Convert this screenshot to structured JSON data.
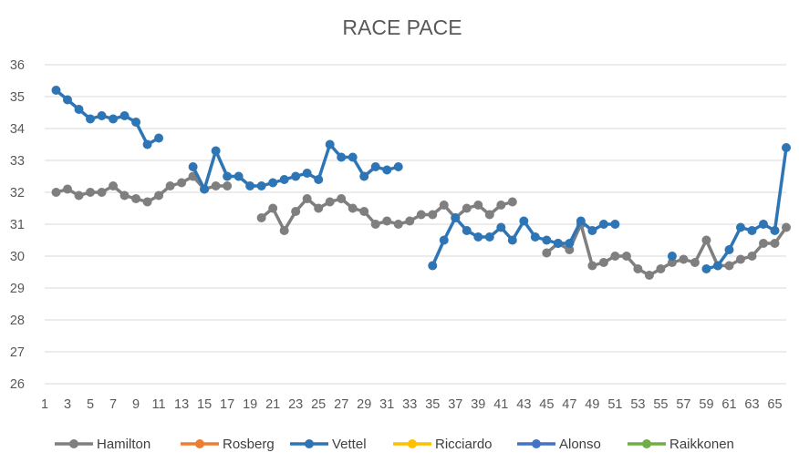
{
  "chart_data": {
    "type": "line",
    "title": "RACE PACE",
    "xlabel": "",
    "ylabel": "",
    "ylim": [
      26,
      36
    ],
    "xlim": [
      1,
      66
    ],
    "yticks": [
      26,
      27,
      28,
      29,
      30,
      31,
      32,
      33,
      34,
      35,
      36
    ],
    "xticks": [
      1,
      3,
      5,
      7,
      9,
      11,
      13,
      15,
      17,
      19,
      21,
      23,
      25,
      27,
      29,
      31,
      33,
      35,
      37,
      39,
      41,
      43,
      45,
      47,
      49,
      51,
      53,
      55,
      57,
      59,
      61,
      63,
      65
    ],
    "grid": "horizontal",
    "legend_position": "bottom",
    "series": [
      {
        "name": "Hamilton",
        "color": "#7f7f7f",
        "points": [
          [
            2,
            32.0
          ],
          [
            3,
            32.1
          ],
          [
            4,
            31.9
          ],
          [
            5,
            32.0
          ],
          [
            6,
            32.0
          ],
          [
            7,
            32.2
          ],
          [
            8,
            31.9
          ],
          [
            9,
            31.8
          ],
          [
            10,
            31.7
          ],
          [
            11,
            31.9
          ],
          [
            12,
            32.2
          ],
          [
            13,
            32.3
          ],
          [
            14,
            32.5
          ],
          [
            15,
            32.1
          ],
          [
            16,
            32.2
          ],
          [
            17,
            32.2
          ],
          [
            20,
            31.2
          ],
          [
            21,
            31.5
          ],
          [
            22,
            30.8
          ],
          [
            23,
            31.4
          ],
          [
            24,
            31.8
          ],
          [
            25,
            31.5
          ],
          [
            26,
            31.7
          ],
          [
            27,
            31.8
          ],
          [
            28,
            31.5
          ],
          [
            29,
            31.4
          ],
          [
            30,
            31.0
          ],
          [
            31,
            31.1
          ],
          [
            32,
            31.0
          ],
          [
            33,
            31.1
          ],
          [
            34,
            31.3
          ],
          [
            35,
            31.3
          ],
          [
            36,
            31.6
          ],
          [
            37,
            31.2
          ],
          [
            38,
            31.5
          ],
          [
            39,
            31.6
          ],
          [
            40,
            31.3
          ],
          [
            41,
            31.6
          ],
          [
            42,
            31.7
          ],
          [
            45,
            30.1
          ],
          [
            46,
            30.4
          ],
          [
            47,
            30.2
          ],
          [
            48,
            31.0
          ],
          [
            49,
            29.7
          ],
          [
            50,
            29.8
          ],
          [
            51,
            30.0
          ],
          [
            52,
            30.0
          ],
          [
            53,
            29.6
          ],
          [
            54,
            29.4
          ],
          [
            55,
            29.6
          ],
          [
            56,
            29.8
          ],
          [
            57,
            29.9
          ],
          [
            58,
            29.8
          ],
          [
            59,
            30.5
          ],
          [
            60,
            29.7
          ],
          [
            61,
            29.7
          ],
          [
            62,
            29.9
          ],
          [
            63,
            30.0
          ],
          [
            64,
            30.4
          ],
          [
            65,
            30.4
          ],
          [
            66,
            30.9
          ]
        ]
      },
      {
        "name": "Rosberg",
        "color": "#ed7d31",
        "points": []
      },
      {
        "name": "Vettel",
        "color": "#2e75b6",
        "points": [
          [
            2,
            35.2
          ],
          [
            3,
            34.9
          ],
          [
            4,
            34.6
          ],
          [
            5,
            34.3
          ],
          [
            6,
            34.4
          ],
          [
            7,
            34.3
          ],
          [
            8,
            34.4
          ],
          [
            9,
            34.2
          ],
          [
            10,
            33.5
          ],
          [
            11,
            33.7
          ],
          [
            14,
            32.8
          ],
          [
            15,
            32.1
          ],
          [
            16,
            33.3
          ],
          [
            17,
            32.5
          ],
          [
            18,
            32.5
          ],
          [
            19,
            32.2
          ],
          [
            20,
            32.2
          ],
          [
            21,
            32.3
          ],
          [
            22,
            32.4
          ],
          [
            23,
            32.5
          ],
          [
            24,
            32.6
          ],
          [
            25,
            32.4
          ],
          [
            26,
            33.5
          ],
          [
            27,
            33.1
          ],
          [
            28,
            33.1
          ],
          [
            29,
            32.5
          ],
          [
            30,
            32.8
          ],
          [
            31,
            32.7
          ],
          [
            32,
            32.8
          ],
          [
            35,
            29.7
          ],
          [
            36,
            30.5
          ],
          [
            37,
            31.2
          ],
          [
            38,
            30.8
          ],
          [
            39,
            30.6
          ],
          [
            40,
            30.6
          ],
          [
            41,
            30.9
          ],
          [
            42,
            30.5
          ],
          [
            43,
            31.1
          ],
          [
            44,
            30.6
          ],
          [
            45,
            30.5
          ],
          [
            46,
            30.4
          ],
          [
            47,
            30.4
          ],
          [
            48,
            31.1
          ],
          [
            49,
            30.8
          ],
          [
            50,
            31.0
          ],
          [
            51,
            31.0
          ],
          [
            56,
            30.0
          ],
          [
            59,
            29.6
          ],
          [
            60,
            29.7
          ],
          [
            61,
            30.2
          ],
          [
            62,
            30.9
          ],
          [
            63,
            30.8
          ],
          [
            64,
            31.0
          ],
          [
            65,
            30.8
          ],
          [
            66,
            33.4
          ]
        ]
      },
      {
        "name": "Ricciardo",
        "color": "#ffc000",
        "points": []
      },
      {
        "name": "Alonso",
        "color": "#4472c4",
        "points": []
      },
      {
        "name": "Raikkonen",
        "color": "#70ad47",
        "points": []
      }
    ]
  }
}
